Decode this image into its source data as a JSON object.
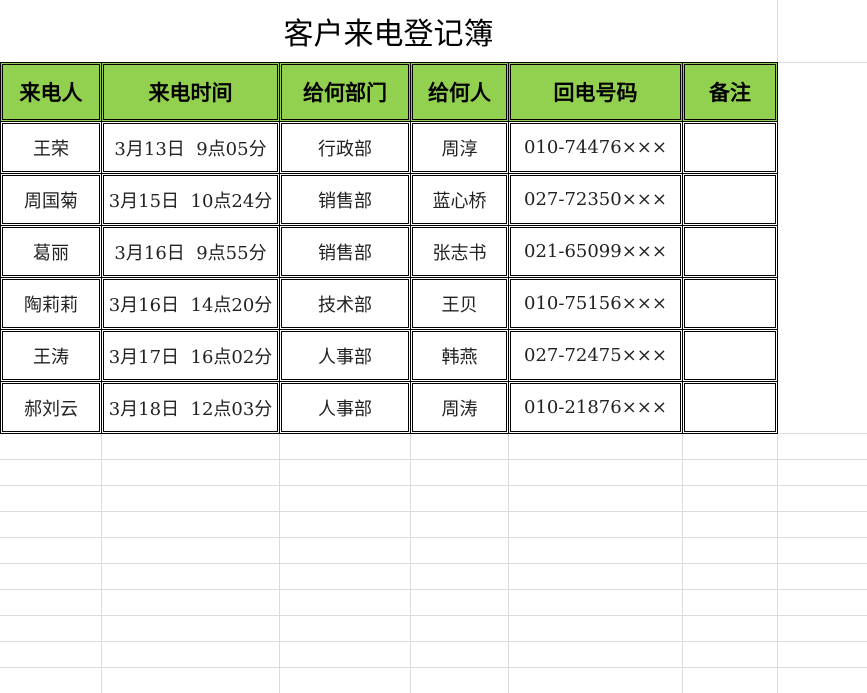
{
  "sheet": {
    "title": "客户来电登记簿",
    "header_color": "#92d050",
    "columns": [
      "来电人",
      "来电时间",
      "给何部门",
      "给何人",
      "回电号码",
      "备注"
    ],
    "rows": [
      [
        "王荣",
        "3月13日  9点05分",
        "行政部",
        "周淳",
        "010-74476×××",
        ""
      ],
      [
        "周国菊",
        "3月15日  10点24分",
        "销售部",
        "蓝心桥",
        "027-72350×××",
        ""
      ],
      [
        "葛丽",
        "3月16日  9点55分",
        "销售部",
        "张志书",
        "021-65099×××",
        ""
      ],
      [
        "陶莉莉",
        "3月16日  14点20分",
        "技术部",
        "王贝",
        "010-75156×××",
        ""
      ],
      [
        "王涛",
        "3月17日  16点02分",
        "人事部",
        "韩燕",
        "027-72475×××",
        ""
      ],
      [
        "郝刘云",
        "3月18日  12点03分",
        "人事部",
        "周涛",
        "010-21876×××",
        ""
      ]
    ]
  }
}
